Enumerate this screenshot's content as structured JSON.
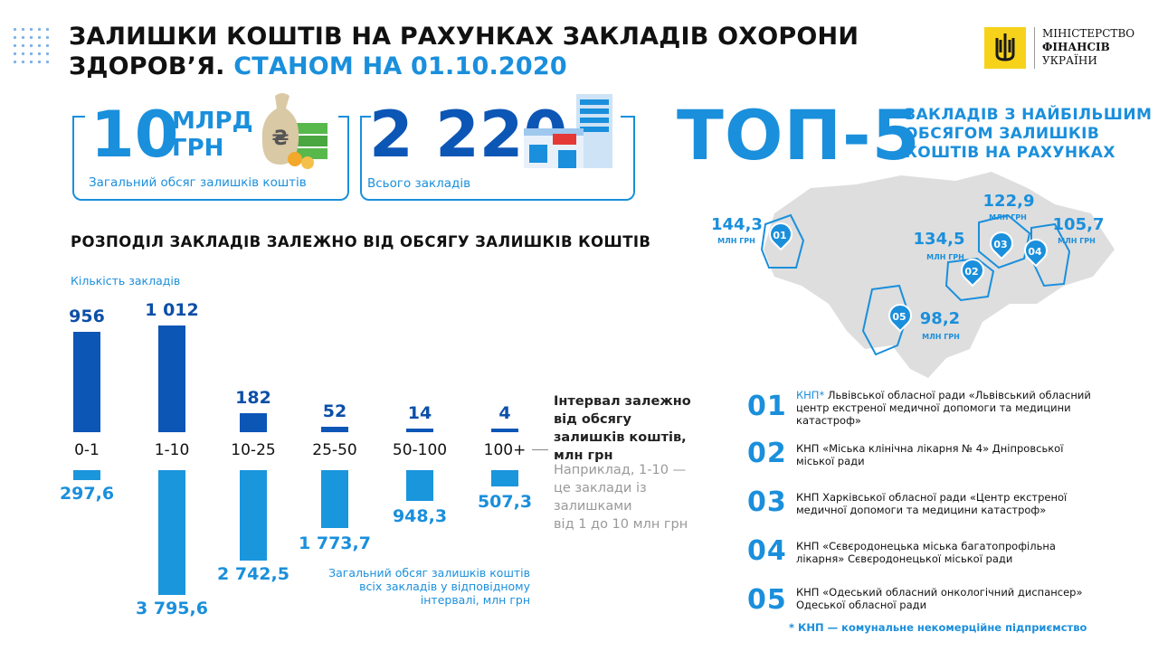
{
  "header": {
    "title_line1": "ЗАЛИШКИ КОШТІВ НА РАХУНКАХ ЗАКЛАДІВ ОХОРОНИ",
    "title_line2": "ЗДОРОВ’Я.",
    "title_date": "СТАНОМ НА 01.10.2020",
    "logo_line1": "МІНІСТЕРСТВО",
    "logo_line2": "ФІНАНСІВ",
    "logo_line3": "УКРАЇНИ"
  },
  "summary": {
    "total_value": "10",
    "total_unit_1": "МЛРД",
    "total_unit_2": "ГРН",
    "total_caption": "Загальний обсяг залишків коштів",
    "institutions_value": "2 220",
    "institutions_caption": "Всього закладів"
  },
  "top5": {
    "heading": "ТОП-5",
    "subheading_1": "ЗАКЛАДІВ З НАЙБІЛЬШИМ",
    "subheading_2": "ОБСЯГОМ ЗАЛИШКІВ",
    "subheading_3": "КОШТІВ НА РАХУНКАХ",
    "unit": "МЛН ГРН",
    "pins": [
      {
        "num": "01",
        "value": "144,3"
      },
      {
        "num": "02",
        "value": "134,5"
      },
      {
        "num": "03",
        "value": "122,9"
      },
      {
        "num": "04",
        "value": "105,7"
      },
      {
        "num": "05",
        "value": "98,2"
      }
    ],
    "list": [
      {
        "num": "01",
        "prefix": "КНП*",
        "text": " Львівської обласної ради «Львівський обласний центр екстреної медичної допомоги та медицини катастроф»"
      },
      {
        "num": "02",
        "prefix": "",
        "text": "КНП «Міська клінічна лікарня № 4» Дніпровської міської ради"
      },
      {
        "num": "03",
        "prefix": "",
        "text": "КНП Харківської обласної ради «Центр екстреної медичної допомоги та медицини катастроф»"
      },
      {
        "num": "04",
        "prefix": "",
        "text": "КНП «Сєвєродонецька  міська багатопрофільна лікарня» Сєвєродонецької міської ради"
      },
      {
        "num": "05",
        "prefix": "",
        "text": "КНП «Одеський обласний онкологічний диспансер» Одеської обласної ради"
      }
    ],
    "footnote": "* КНП — комунальне некомерційне підприємство"
  },
  "distribution": {
    "heading": "РОЗПОДІЛ ЗАКЛАДІВ ЗАЛЕЖНО ВІД ОБСЯГУ ЗАЛИШКІВ КОШТІВ",
    "count_label": "Кількість закладів",
    "legend_interval_1": "Інтервал залежно",
    "legend_interval_2": "від обсягу",
    "legend_interval_3": "залишків коштів,",
    "legend_interval_4": "млн грн",
    "legend_example_1": "Наприклад, 1-10 —",
    "legend_example_2": "це заклади із",
    "legend_example_3": "залишками",
    "legend_example_4": "від 1 до 10 млн грн",
    "legend_volume_1": "Загальний обсяг залишків коштів",
    "legend_volume_2": "всіх закладів у відповідному",
    "legend_volume_3": "інтервалі, млн грн"
  },
  "chart_data": {
    "type": "bar",
    "categories": [
      "0-1",
      "1-10",
      "10-25",
      "25-50",
      "50-100",
      "100+"
    ],
    "series": [
      {
        "name": "Кількість закладів",
        "values": [
          956,
          1012,
          182,
          52,
          14,
          4
        ],
        "labels": [
          "956",
          "1 012",
          "182",
          "52",
          "14",
          "4"
        ]
      },
      {
        "name": "Загальний обсяг залишків коштів всіх закладів у відповідному інтервалі, млн грн",
        "values": [
          297.6,
          3795.6,
          2742.5,
          1773.7,
          948.3,
          507.3
        ],
        "labels": [
          "297,6",
          "3 795,6",
          "2 742,5",
          "1 773,7",
          "948,3",
          "507,3"
        ]
      }
    ],
    "colors": {
      "count": "#0c56b6",
      "volume": "#1a96dc"
    }
  }
}
